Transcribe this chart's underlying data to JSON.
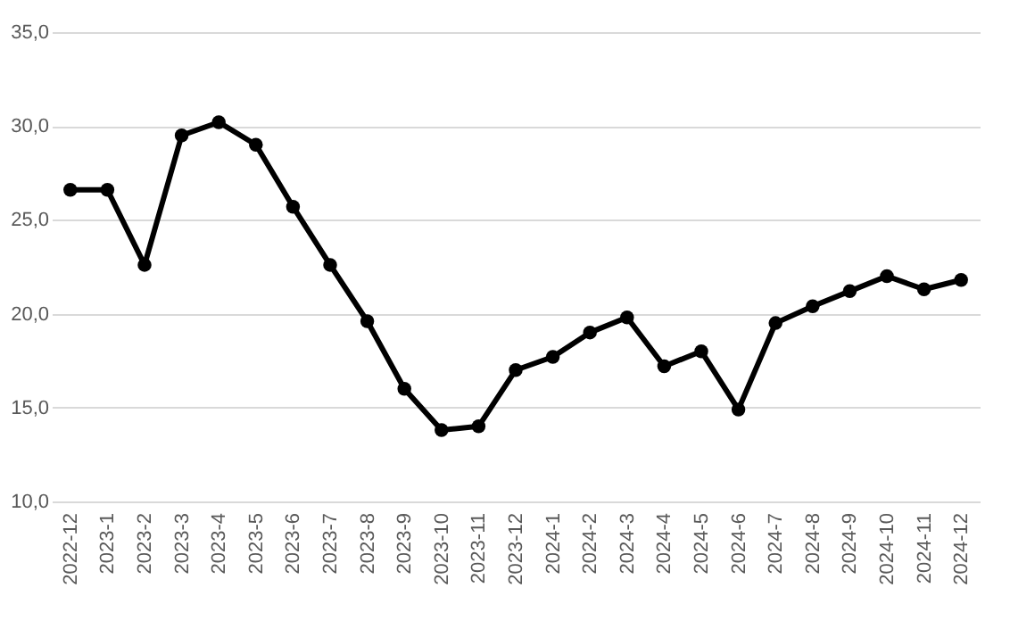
{
  "chart_data": {
    "type": "line",
    "categories": [
      "2022-12",
      "2023-1",
      "2023-2",
      "2023-3",
      "2023-4",
      "2023-5",
      "2023-6",
      "2023-7",
      "2023-8",
      "2023-9",
      "2023-10",
      "2023-11",
      "2023-12",
      "2024-1",
      "2024-2",
      "2024-3",
      "2024-4",
      "2024-5",
      "2024-6",
      "2024-7",
      "2024-8",
      "2024-9",
      "2024-10",
      "2024-11",
      "2024-12"
    ],
    "series": [
      {
        "color": "#000000",
        "values": [
          26.6,
          26.6,
          22.6,
          29.5,
          30.2,
          29.0,
          25.7,
          22.6,
          19.6,
          16.0,
          13.8,
          14.0,
          17.0,
          17.7,
          19.0,
          19.8,
          17.2,
          18.0,
          14.9,
          19.5,
          20.4,
          21.2,
          22.0,
          21.3,
          21.8
        ]
      }
    ],
    "ylim": [
      10,
      35
    ],
    "yticks": [
      {
        "value": 10,
        "label": "10,0"
      },
      {
        "value": 15,
        "label": "15,0"
      },
      {
        "value": 20,
        "label": "20,0"
      },
      {
        "value": 25,
        "label": "25,0"
      },
      {
        "value": 30,
        "label": "30,0"
      },
      {
        "value": 35,
        "label": "35,0"
      }
    ],
    "grid": "y",
    "marker": "circle",
    "line_style": "solid"
  }
}
